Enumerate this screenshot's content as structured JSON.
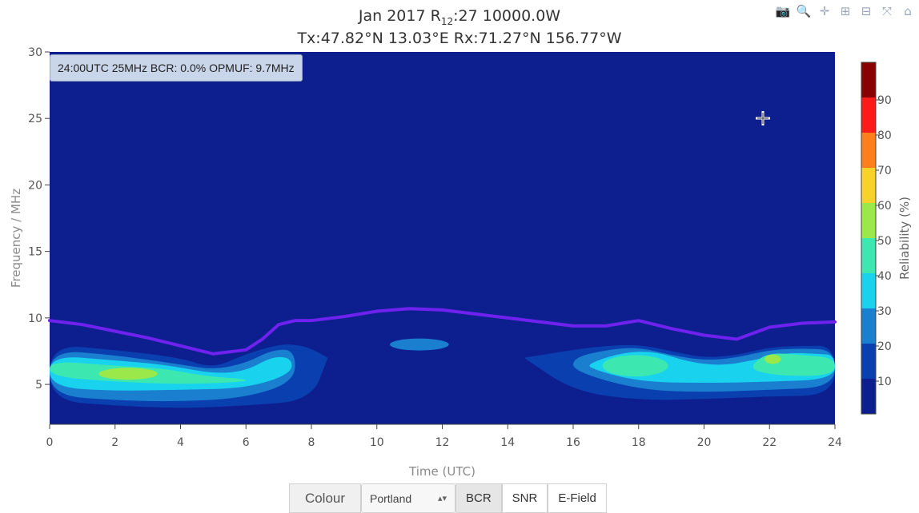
{
  "chart_data": {
    "type": "heatmap",
    "title_line1": "Jan 2017 R",
    "title_sub": "12",
    "title_line1_rest": ":27 10000.0W",
    "title_line2": "Tx:47.82°N 13.03°E Rx:71.27°N 156.77°W",
    "xlabel": "Time (UTC)",
    "ylabel": "Frequency / MHz",
    "xlim": [
      0,
      24
    ],
    "ylim": [
      2,
      30
    ],
    "x_ticks": [
      "0",
      "2",
      "4",
      "6",
      "8",
      "10",
      "12",
      "14",
      "16",
      "18",
      "20",
      "22",
      "24"
    ],
    "y_ticks": [
      "5",
      "10",
      "15",
      "20",
      "25",
      "30"
    ],
    "colorbar": {
      "title": "Reliability (%)",
      "ticks": [
        "10",
        "20",
        "30",
        "40",
        "50",
        "60",
        "70",
        "80",
        "90"
      ],
      "colors": [
        "#0d1f8f",
        "#0a3fb0",
        "#1a7fcf",
        "#19d3ee",
        "#3de8b0",
        "#9be84a",
        "#f7d32a",
        "#ff7f1a",
        "#ff1a1a",
        "#8a0000"
      ]
    },
    "muf_curve": {
      "color": "#6f22ee",
      "x": [
        0,
        1,
        2,
        3,
        4,
        5,
        6,
        6.5,
        7,
        7.5,
        8,
        9,
        10,
        11,
        12,
        13,
        14,
        15,
        16,
        17,
        17.5,
        18,
        18.5,
        19,
        20,
        21,
        22,
        23,
        24
      ],
      "y": [
        9.8,
        9.5,
        9.0,
        8.5,
        7.9,
        7.3,
        7.6,
        8.4,
        9.5,
        9.8,
        9.8,
        10.1,
        10.5,
        10.7,
        10.6,
        10.3,
        10.0,
        9.7,
        9.4,
        9.4,
        9.6,
        9.8,
        9.5,
        9.2,
        8.7,
        8.4,
        9.3,
        9.6,
        9.7
      ]
    },
    "regions": [
      {
        "level": 1,
        "upper_x": [
          0,
          2,
          4,
          5,
          6,
          7,
          7.5,
          8,
          8.5
        ],
        "upper_y": [
          8.0,
          7.6,
          7.0,
          6.2,
          7.3,
          8.0,
          8.0,
          7.7,
          7.0
        ],
        "lower_x": [
          0,
          2,
          4,
          6,
          8,
          8.5
        ],
        "lower_y": [
          3.8,
          3.4,
          3.2,
          3.4,
          3.8,
          7.0
        ]
      },
      {
        "level": 2,
        "upper_x": [
          0,
          2,
          4,
          5,
          6,
          6.8,
          7.5
        ],
        "upper_y": [
          7.6,
          7.2,
          6.5,
          6.1,
          6.6,
          7.6,
          7.6
        ],
        "lower_x": [
          0,
          2,
          4,
          6,
          7.5
        ],
        "lower_y": [
          4.2,
          3.8,
          3.7,
          4.0,
          5.2
        ]
      },
      {
        "level": 3,
        "upper_x": [
          0,
          2,
          3.5,
          5,
          6,
          6.8,
          7.4
        ],
        "upper_y": [
          7.2,
          6.8,
          6.5,
          5.8,
          6.0,
          7.1,
          7.0
        ],
        "lower_x": [
          0,
          2,
          4,
          6,
          7.4
        ],
        "lower_y": [
          4.8,
          4.5,
          4.6,
          4.7,
          5.8
        ]
      },
      {
        "level": 4,
        "upper_x": [
          0,
          2,
          3.5,
          4.8,
          6
        ],
        "upper_y": [
          6.8,
          6.4,
          6.2,
          5.6,
          5.4
        ],
        "lower_x": [
          0,
          2,
          4,
          6
        ],
        "lower_y": [
          5.6,
          5.2,
          5.0,
          5.2
        ]
      },
      {
        "level": 5,
        "cx": 2.4,
        "cy": 5.8,
        "rx": 0.9,
        "ry": 0.45
      },
      {
        "level": 2,
        "cx": 11.3,
        "cy": 8.0,
        "rx": 0.9,
        "ry": 0.45
      },
      {
        "level": 1,
        "upper_x": [
          14.5,
          16,
          17,
          18,
          19,
          20,
          21,
          22,
          23,
          24
        ],
        "upper_y": [
          7.0,
          7.6,
          7.9,
          8.0,
          7.5,
          7.0,
          7.2,
          7.8,
          7.9,
          7.9
        ],
        "lower_x": [
          14.5,
          16,
          18,
          20,
          22,
          24
        ],
        "lower_y": [
          7.0,
          4.5,
          3.8,
          3.9,
          4.1,
          4.2
        ]
      },
      {
        "level": 2,
        "upper_x": [
          16,
          17,
          18,
          19,
          20,
          21,
          22,
          23,
          24
        ],
        "upper_y": [
          7.0,
          7.6,
          7.8,
          7.2,
          6.8,
          7.0,
          7.6,
          7.7,
          7.6
        ],
        "lower_x": [
          16,
          18,
          20,
          22,
          24
        ],
        "lower_y": [
          6.0,
          4.6,
          4.4,
          4.6,
          4.8
        ]
      },
      {
        "level": 3,
        "upper_x": [
          16.5,
          17.5,
          18.5,
          19.5,
          20.5,
          21.5,
          22.5,
          23.5,
          24
        ],
        "upper_y": [
          6.6,
          7.4,
          7.5,
          6.7,
          6.4,
          6.8,
          7.4,
          7.3,
          7.2
        ],
        "lower_x": [
          16.5,
          18,
          20,
          22,
          24
        ],
        "lower_y": [
          6.2,
          5.2,
          5.1,
          5.2,
          5.4
        ]
      },
      {
        "level": 4,
        "cx": 17.9,
        "cy": 6.4,
        "rx": 1.0,
        "ry": 0.8
      },
      {
        "level": 4,
        "upper_x": [
          21.5,
          22,
          23,
          24
        ],
        "upper_y": [
          6.6,
          7.4,
          7.2,
          7.0
        ],
        "lower_x": [
          21.5,
          22.5,
          24
        ],
        "lower_y": [
          6.0,
          5.6,
          5.7
        ]
      },
      {
        "level": 5,
        "cx": 22.1,
        "cy": 6.9,
        "rx": 0.25,
        "ry": 0.35
      }
    ]
  },
  "hover_label": "24:00UTC 25MHz BCR: 0.0% OPMUF: 9.7MHz",
  "controls": {
    "colour_label": "Colour",
    "colour_scale": "Portland",
    "buttons": [
      "BCR",
      "SNR",
      "E-Field"
    ],
    "active": "BCR"
  },
  "modebar": [
    {
      "name": "camera-icon",
      "glyph": "📷"
    },
    {
      "name": "zoom-icon",
      "glyph": "🔍"
    },
    {
      "name": "pan-icon",
      "glyph": "✛"
    },
    {
      "name": "zoom-in-icon",
      "glyph": "⊞"
    },
    {
      "name": "zoom-out-icon",
      "glyph": "⊟"
    },
    {
      "name": "autoscale-icon",
      "glyph": "⤧"
    },
    {
      "name": "home-icon",
      "glyph": "⌂"
    }
  ]
}
